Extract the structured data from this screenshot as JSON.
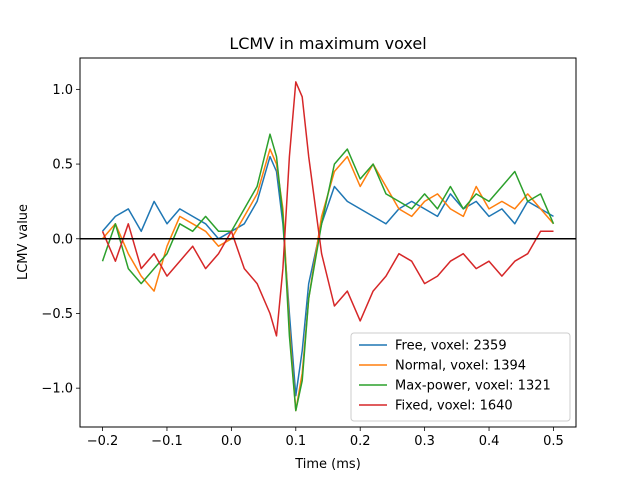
{
  "chart_data": {
    "type": "line",
    "title": "LCMV in maximum voxel",
    "xlabel": "Time (ms)",
    "ylabel": "LCMV value",
    "xlim": [
      -0.235,
      0.535
    ],
    "ylim": [
      -1.26,
      1.21
    ],
    "xticks": [
      -0.2,
      -0.1,
      0.0,
      0.1,
      0.2,
      0.3,
      0.4,
      0.5
    ],
    "xtick_labels": [
      "−0.2",
      "−0.1",
      "0.0",
      "0.1",
      "0.2",
      "0.3",
      "0.4",
      "0.5"
    ],
    "yticks": [
      1.0,
      0.5,
      0.0,
      -0.5,
      -1.0
    ],
    "ytick_labels": [
      "1.0",
      "0.5",
      "0.0",
      "−0.5",
      "−1.0"
    ],
    "grid": false,
    "hline": 0,
    "legend_position": "lower-right",
    "series": [
      {
        "name": "Free, voxel: 2359",
        "color": "#1f77b4",
        "x": [
          -0.2,
          -0.18,
          -0.16,
          -0.14,
          -0.12,
          -0.1,
          -0.08,
          -0.06,
          -0.04,
          -0.02,
          0.0,
          0.02,
          0.04,
          0.06,
          0.07,
          0.08,
          0.09,
          0.1,
          0.11,
          0.12,
          0.14,
          0.16,
          0.18,
          0.2,
          0.22,
          0.24,
          0.26,
          0.28,
          0.3,
          0.32,
          0.34,
          0.36,
          0.38,
          0.4,
          0.42,
          0.44,
          0.46,
          0.48,
          0.5
        ],
        "y": [
          0.05,
          0.15,
          0.2,
          0.05,
          0.25,
          0.1,
          0.2,
          0.15,
          0.1,
          0.0,
          0.05,
          0.1,
          0.25,
          0.55,
          0.45,
          0.1,
          -0.5,
          -1.05,
          -0.75,
          -0.3,
          0.1,
          0.35,
          0.25,
          0.2,
          0.15,
          0.1,
          0.2,
          0.25,
          0.2,
          0.15,
          0.3,
          0.2,
          0.25,
          0.15,
          0.2,
          0.1,
          0.25,
          0.2,
          0.15
        ]
      },
      {
        "name": "Normal, voxel: 1394",
        "color": "#ff7f0e",
        "x": [
          -0.2,
          -0.18,
          -0.16,
          -0.14,
          -0.12,
          -0.1,
          -0.08,
          -0.06,
          -0.04,
          -0.02,
          0.0,
          0.02,
          0.04,
          0.06,
          0.07,
          0.08,
          0.09,
          0.1,
          0.11,
          0.12,
          0.14,
          0.16,
          0.18,
          0.2,
          0.22,
          0.24,
          0.26,
          0.28,
          0.3,
          0.32,
          0.34,
          0.36,
          0.38,
          0.4,
          0.42,
          0.44,
          0.46,
          0.48,
          0.5
        ],
        "y": [
          0.0,
          0.1,
          -0.1,
          -0.25,
          -0.35,
          -0.05,
          0.15,
          0.1,
          0.05,
          -0.05,
          0.0,
          0.15,
          0.3,
          0.6,
          0.5,
          0.2,
          -0.6,
          -1.15,
          -0.9,
          -0.4,
          0.15,
          0.45,
          0.55,
          0.35,
          0.5,
          0.35,
          0.2,
          0.15,
          0.25,
          0.3,
          0.2,
          0.15,
          0.35,
          0.2,
          0.25,
          0.2,
          0.3,
          0.2,
          0.1
        ]
      },
      {
        "name": "Max-power, voxel: 1321",
        "color": "#2ca02c",
        "x": [
          -0.2,
          -0.18,
          -0.16,
          -0.14,
          -0.12,
          -0.1,
          -0.08,
          -0.06,
          -0.04,
          -0.02,
          0.0,
          0.02,
          0.04,
          0.06,
          0.07,
          0.08,
          0.09,
          0.1,
          0.11,
          0.12,
          0.14,
          0.16,
          0.18,
          0.2,
          0.22,
          0.24,
          0.26,
          0.28,
          0.3,
          0.32,
          0.34,
          0.36,
          0.38,
          0.4,
          0.42,
          0.44,
          0.46,
          0.48,
          0.5
        ],
        "y": [
          -0.15,
          0.1,
          -0.2,
          -0.3,
          -0.2,
          -0.1,
          0.1,
          0.05,
          0.15,
          0.05,
          0.05,
          0.2,
          0.35,
          0.7,
          0.55,
          0.15,
          -0.65,
          -1.15,
          -0.95,
          -0.4,
          0.1,
          0.5,
          0.6,
          0.4,
          0.5,
          0.3,
          0.25,
          0.2,
          0.3,
          0.2,
          0.35,
          0.2,
          0.3,
          0.25,
          0.35,
          0.45,
          0.25,
          0.3,
          0.1
        ]
      },
      {
        "name": "Fixed, voxel: 1640",
        "color": "#d62728",
        "x": [
          -0.2,
          -0.18,
          -0.16,
          -0.14,
          -0.12,
          -0.1,
          -0.08,
          -0.06,
          -0.04,
          -0.02,
          0.0,
          0.02,
          0.04,
          0.06,
          0.07,
          0.08,
          0.09,
          0.1,
          0.11,
          0.12,
          0.14,
          0.16,
          0.18,
          0.2,
          0.22,
          0.24,
          0.26,
          0.28,
          0.3,
          0.32,
          0.34,
          0.36,
          0.38,
          0.4,
          0.42,
          0.44,
          0.46,
          0.48,
          0.5
        ],
        "y": [
          0.05,
          -0.15,
          0.1,
          -0.2,
          -0.1,
          -0.25,
          -0.15,
          -0.05,
          -0.2,
          -0.1,
          0.05,
          -0.2,
          -0.3,
          -0.5,
          -0.65,
          -0.2,
          0.55,
          1.05,
          0.95,
          0.55,
          -0.1,
          -0.45,
          -0.35,
          -0.55,
          -0.35,
          -0.25,
          -0.1,
          -0.15,
          -0.3,
          -0.25,
          -0.15,
          -0.1,
          -0.2,
          -0.15,
          -0.25,
          -0.15,
          -0.1,
          0.05,
          0.05
        ]
      }
    ]
  }
}
